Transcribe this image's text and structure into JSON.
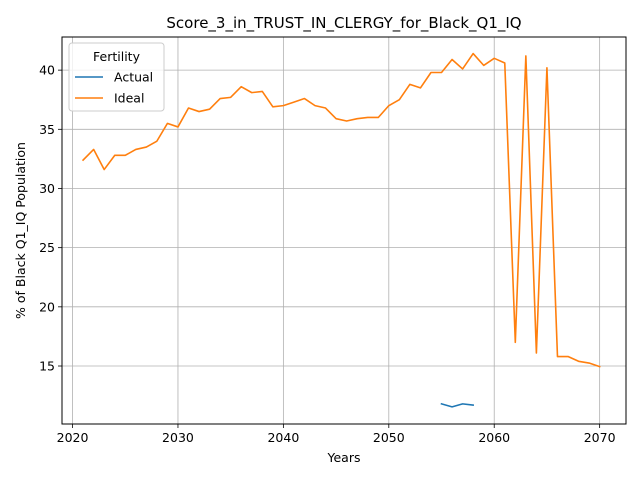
{
  "chart_data": {
    "type": "line",
    "title": "Score_3_in_TRUST_IN_CLERGY_for_Black_Q1_IQ",
    "xlabel": "Years",
    "ylabel": "% of Black Q1_IQ Population",
    "xlim": [
      2019,
      2072.5
    ],
    "ylim": [
      10.1,
      42.8
    ],
    "xticks": [
      2020,
      2030,
      2040,
      2050,
      2060,
      2070
    ],
    "yticks": [
      15,
      20,
      25,
      30,
      35,
      40
    ],
    "grid": true,
    "legend": {
      "title": "Fertility",
      "placement": "top-left"
    },
    "series": [
      {
        "name": "Actual",
        "color": "#1f77b4",
        "x": [
          2055,
          2056,
          2057,
          2058
        ],
        "y": [
          11.8,
          11.55,
          11.8,
          11.7
        ]
      },
      {
        "name": "Ideal",
        "color": "#ff7f0e",
        "x": [
          2021,
          2022,
          2023,
          2024,
          2025,
          2026,
          2027,
          2028,
          2029,
          2030,
          2031,
          2032,
          2033,
          2034,
          2035,
          2036,
          2037,
          2038,
          2039,
          2040,
          2041,
          2042,
          2043,
          2044,
          2045,
          2046,
          2047,
          2048,
          2049,
          2050,
          2051,
          2052,
          2053,
          2054,
          2055,
          2056,
          2057,
          2058,
          2059,
          2060,
          2061,
          2062,
          2063,
          2064,
          2065,
          2066,
          2067,
          2068,
          2069,
          2070
        ],
        "y": [
          32.4,
          33.3,
          31.6,
          32.8,
          32.8,
          33.3,
          33.5,
          34.0,
          35.5,
          35.2,
          36.8,
          36.5,
          36.7,
          37.6,
          37.7,
          38.6,
          38.1,
          38.2,
          36.9,
          37.0,
          37.3,
          37.6,
          37.0,
          36.8,
          35.9,
          35.7,
          35.9,
          36.0,
          36.0,
          37.0,
          37.5,
          38.8,
          38.5,
          39.8,
          39.8,
          40.9,
          40.1,
          41.4,
          40.4,
          41.0,
          40.6,
          17.0,
          41.2,
          16.1,
          40.2,
          15.8,
          15.8,
          15.4,
          15.25,
          14.95
        ]
      }
    ]
  }
}
